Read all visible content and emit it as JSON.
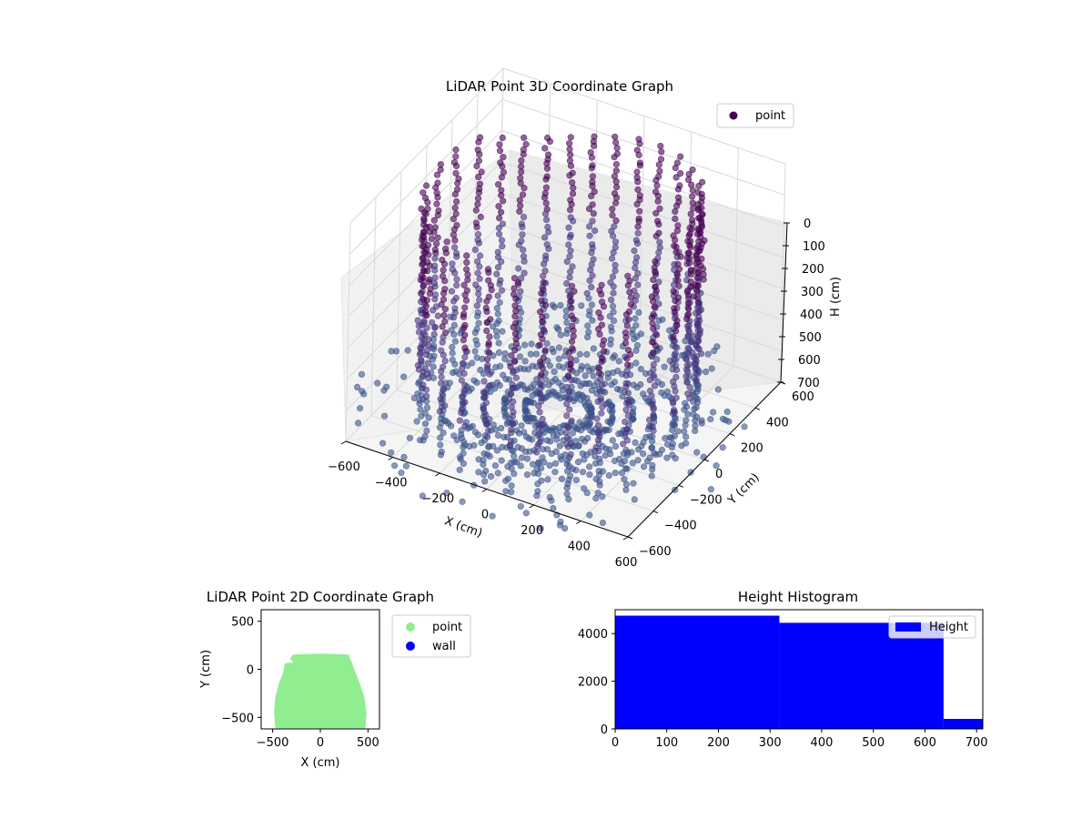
{
  "chart_data": [
    {
      "type": "scatter",
      "projection": "3d",
      "title": "LiDAR Point 3D Coordinate Graph",
      "xlabel": "X (cm)",
      "ylabel": "Y (cm)",
      "zlabel": "H (cm)",
      "x_ticks": [
        "−600",
        "−400",
        "−200",
        "0",
        "200",
        "400",
        "600"
      ],
      "y_ticks": [
        "−600",
        "−400",
        "−200",
        "0",
        "200",
        "400",
        "600"
      ],
      "z_ticks": [
        "0",
        "100",
        "200",
        "300",
        "400",
        "500",
        "600",
        "700"
      ],
      "xlim": [
        -600,
        600
      ],
      "ylim": [
        -600,
        600
      ],
      "zlim": [
        0,
        700
      ],
      "z_inverted": true,
      "grid": true,
      "legend": {
        "entries": [
          "point"
        ],
        "placement": "top-right"
      },
      "colors": {
        "marker_dark": "#440154",
        "marker_mid": "#46327e",
        "marker_light": "#3b528b"
      },
      "series": [
        {
          "name": "point",
          "description_values": "dense ring of vertical point columns (walls) around an empty floor, heights 0–700 cm",
          "wall_columns": [
            {
              "x": -520,
              "y": -60
            },
            {
              "x": -500,
              "y": 60
            },
            {
              "x": -470,
              "y": 180
            },
            {
              "x": -430,
              "y": 280
            },
            {
              "x": -380,
              "y": 360
            },
            {
              "x": -310,
              "y": 420
            },
            {
              "x": -230,
              "y": 460
            },
            {
              "x": -150,
              "y": 480
            },
            {
              "x": -60,
              "y": 490
            },
            {
              "x": 40,
              "y": 490
            },
            {
              "x": 130,
              "y": 480
            },
            {
              "x": 220,
              "y": 460
            },
            {
              "x": 300,
              "y": 420
            },
            {
              "x": 370,
              "y": 360
            },
            {
              "x": 420,
              "y": 280
            },
            {
              "x": 460,
              "y": 180
            },
            {
              "x": 490,
              "y": 60
            },
            {
              "x": 500,
              "y": -60
            },
            {
              "x": 480,
              "y": -200
            },
            {
              "x": 440,
              "y": -330
            },
            {
              "x": 380,
              "y": -430
            },
            {
              "x": 290,
              "y": -500
            },
            {
              "x": 190,
              "y": -540
            },
            {
              "x": 80,
              "y": -560
            },
            {
              "x": -30,
              "y": -560
            },
            {
              "x": -140,
              "y": -540
            },
            {
              "x": -250,
              "y": -500
            },
            {
              "x": -350,
              "y": -440
            },
            {
              "x": -430,
              "y": -340
            },
            {
              "x": -490,
              "y": -210
            }
          ]
        }
      ]
    },
    {
      "type": "scatter",
      "title": "LiDAR Point 2D Coordinate Graph",
      "xlabel": "X (cm)",
      "ylabel": "Y (cm)",
      "x_ticks": [
        "−500",
        "0",
        "500"
      ],
      "y_ticks": [
        "−500",
        "0",
        "500"
      ],
      "xlim": [
        -620,
        620
      ],
      "ylim": [
        -620,
        620
      ],
      "legend": {
        "entries": [
          "point",
          "wall"
        ],
        "placement": "outside-right"
      },
      "series": [
        {
          "name": "point",
          "color": "#90ee90",
          "outline": [
            {
              "x": -460,
              "y": -600
            },
            {
              "x": -470,
              "y": -450
            },
            {
              "x": -460,
              "y": -300
            },
            {
              "x": -420,
              "y": -150
            },
            {
              "x": -380,
              "y": -50
            },
            {
              "x": -360,
              "y": 50
            },
            {
              "x": -250,
              "y": 60
            },
            {
              "x": -300,
              "y": 110
            },
            {
              "x": -280,
              "y": 140
            },
            {
              "x": 0,
              "y": 150
            },
            {
              "x": 290,
              "y": 140
            },
            {
              "x": 300,
              "y": 100
            },
            {
              "x": 320,
              "y": 60
            },
            {
              "x": 360,
              "y": -50
            },
            {
              "x": 400,
              "y": -150
            },
            {
              "x": 450,
              "y": -300
            },
            {
              "x": 470,
              "y": -450
            },
            {
              "x": 460,
              "y": -600
            }
          ]
        },
        {
          "name": "wall",
          "color": "#0000ff",
          "values": []
        }
      ]
    },
    {
      "type": "bar",
      "subtype": "histogram",
      "title": "Height Histogram",
      "xlabel": "",
      "ylabel": "",
      "x_ticks": [
        "0",
        "100",
        "200",
        "300",
        "400",
        "500",
        "600",
        "700"
      ],
      "y_ticks": [
        "0",
        "2000",
        "4000"
      ],
      "xlim": [
        0,
        712
      ],
      "ylim": [
        0,
        5000
      ],
      "legend": {
        "entries": [
          "Height"
        ],
        "placement": "top-right"
      },
      "series": [
        {
          "name": "Height",
          "color": "#0000ff",
          "bins": [
            {
              "start": 0,
              "end": 318,
              "count": 4750
            },
            {
              "start": 318,
              "end": 636,
              "count": 4450
            },
            {
              "start": 636,
              "end": 712,
              "count": 420
            }
          ]
        }
      ]
    }
  ]
}
